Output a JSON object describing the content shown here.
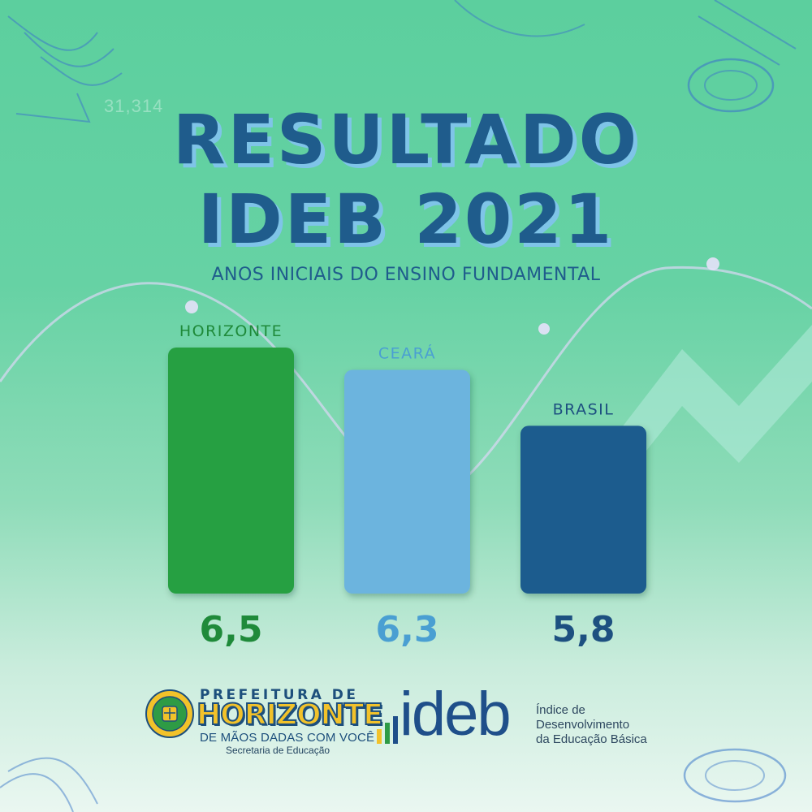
{
  "faint_number": "31,314",
  "header": {
    "title_line1": "RESULTADO",
    "title_line2": "IDEB 2021",
    "subtitle": "ANOS INICIAIS DO ENSINO FUNDAMENTAL"
  },
  "chart_data": {
    "type": "bar",
    "categories": [
      "HORIZONTE",
      "CEARÁ",
      "BRASIL"
    ],
    "values": [
      6.5,
      6.3,
      5.8
    ],
    "value_labels": [
      "6,5",
      "6,3",
      "5,8"
    ],
    "colors": [
      "#27a042",
      "#6cb4de",
      "#1d5c8e"
    ],
    "label_colors": [
      "#1f8a3a",
      "#4a9fd2",
      "#1d5080"
    ],
    "ylim": [
      4.3,
      6.5
    ],
    "grid": false,
    "legend": "none"
  },
  "logos": {
    "prefeitura_top": "PREFEITURA DE",
    "prefeitura_name": "HORIZONTE",
    "prefeitura_slogan": "DE MÃOS DADAS COM VOCÊ",
    "prefeitura_dept": "Secretaria de Educação",
    "ideb_word": "ideb",
    "ideb_desc_line1": "Índice de",
    "ideb_desc_line2": "Desenvolvimento",
    "ideb_desc_line3": "da Educação Básica",
    "ideb_bar_colors": [
      "#f2c22a",
      "#2e9b45",
      "#1f4f8a"
    ]
  }
}
